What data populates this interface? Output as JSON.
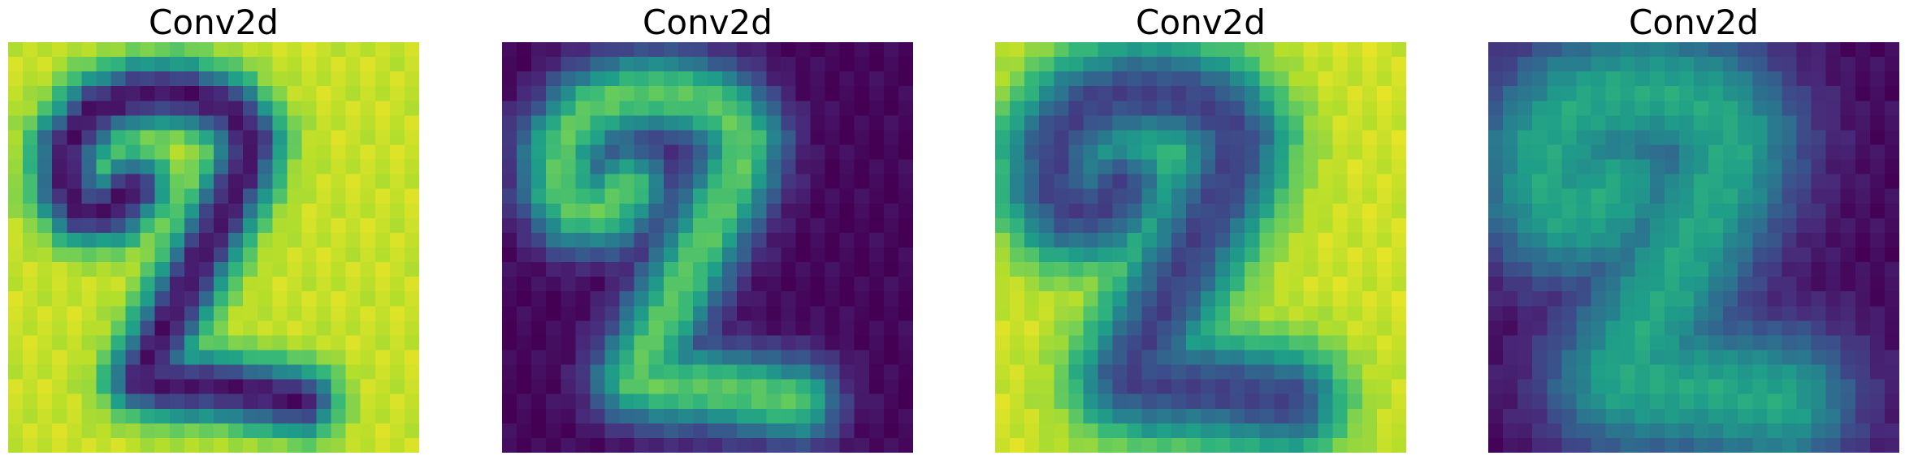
{
  "colormap": "viridis",
  "colormap_stops": [
    "#440154",
    "#482878",
    "#3e4989",
    "#31688e",
    "#26828e",
    "#1f9e89",
    "#35b779",
    "#6ece58",
    "#b5de2b",
    "#fde725"
  ],
  "grid_size": [
    28,
    28
  ],
  "chart_data": [
    {
      "type": "heatmap",
      "title": "Conv2d",
      "axes": "off",
      "grid": false,
      "background": 0.92,
      "foreground": 0.05,
      "stroke": 1.6,
      "invert": false,
      "description_values": "feature map: dark digit stroke on bright background"
    },
    {
      "type": "heatmap",
      "title": "Conv2d",
      "axes": "off",
      "grid": false,
      "background": 0.02,
      "foreground": 0.75,
      "stroke": 2.0,
      "invert": false,
      "description_values": "feature map: bright stroke on dark background"
    },
    {
      "type": "heatmap",
      "title": "Conv2d",
      "axes": "off",
      "grid": false,
      "background": 0.93,
      "foreground": 0.2,
      "stroke": 2.6,
      "invert": false,
      "description_values": "feature map: dark-teal thick stroke on yellow background"
    },
    {
      "type": "heatmap",
      "title": "Conv2d",
      "axes": "off",
      "grid": false,
      "background": 0.03,
      "foreground": 0.6,
      "stroke": 3.6,
      "invert": false,
      "description_values": "feature map: diffuse green stroke on dark background"
    }
  ]
}
